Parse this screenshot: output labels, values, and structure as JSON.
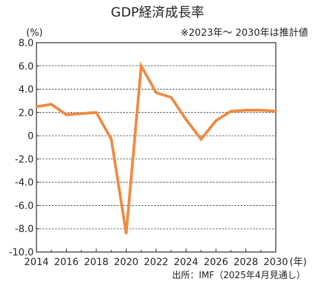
{
  "chart_data": {
    "type": "line",
    "title": "GDP経済成長率",
    "subtitle": "※2023年～ 2030年は推計値",
    "ylabel": "(%)",
    "xlabel_unit": "(年)",
    "source": "出所：IMF（2025年4月見通し）",
    "ylim": [
      -10.0,
      8.0
    ],
    "yticks": [
      "8.0",
      "6.0",
      "4.0",
      "2.0",
      "0",
      "-2.0",
      "-4.0",
      "-6.0",
      "-8.0",
      "-10.0"
    ],
    "ytick_values": [
      8,
      6,
      4,
      2,
      0,
      -2,
      -4,
      -6,
      -8,
      -10
    ],
    "xlim": [
      2014,
      2030
    ],
    "xticks": [
      "2014",
      "2016",
      "2018",
      "2020",
      "2022",
      "2024",
      "2026",
      "2028",
      "2030"
    ],
    "xtick_values": [
      2014,
      2016,
      2018,
      2020,
      2022,
      2024,
      2026,
      2028,
      2030
    ],
    "grid": true,
    "series": [
      {
        "x": [
          2014,
          2015,
          2016,
          2017,
          2018,
          2019,
          2020,
          2021,
          2022,
          2023,
          2024,
          2025,
          2026,
          2027,
          2028,
          2029,
          2030
        ],
        "y": [
          2.5,
          2.7,
          1.8,
          1.9,
          2.0,
          -0.3,
          -8.4,
          6.0,
          3.7,
          3.3,
          1.4,
          -0.3,
          1.3,
          2.1,
          2.2,
          2.2,
          2.1
        ]
      }
    ],
    "colors": {
      "line": "#f08a40",
      "grid": "#222222",
      "axis": "#222222"
    }
  }
}
